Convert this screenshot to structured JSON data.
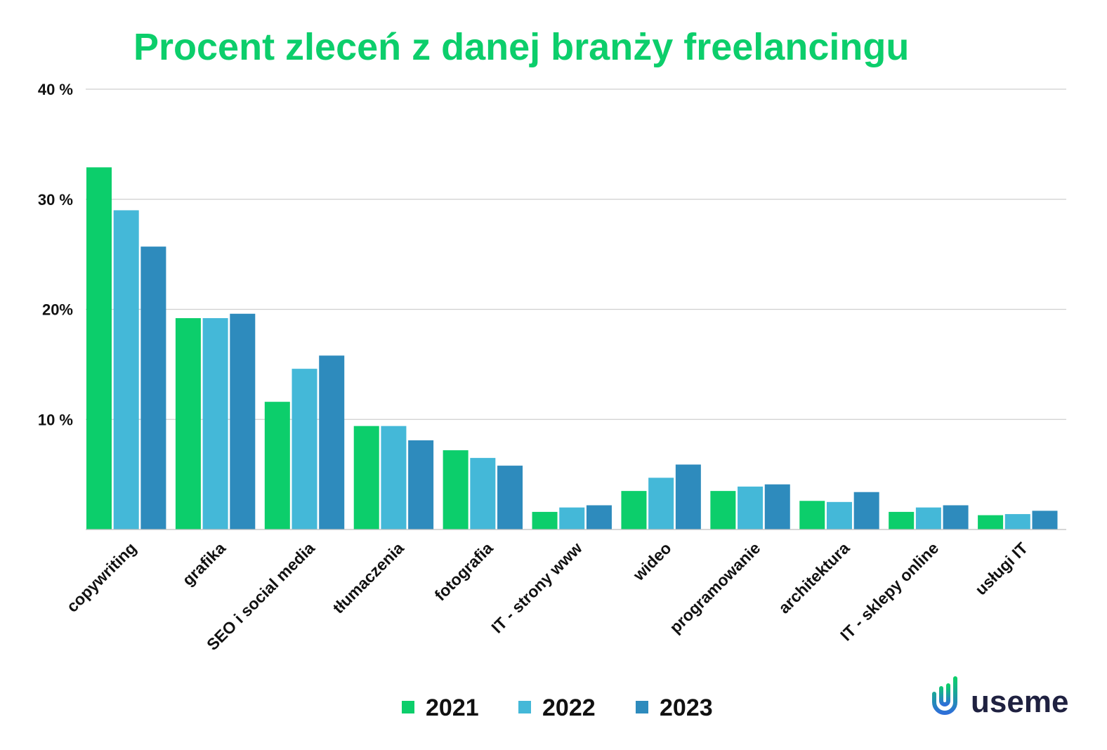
{
  "chart_data": {
    "type": "bar",
    "title": "Procent zleceń z danej branży freelancingu",
    "xlabel": "",
    "ylabel": "",
    "ylim": [
      0,
      40
    ],
    "yticks": [
      {
        "value": 10,
        "label": "10 %"
      },
      {
        "value": 20,
        "label": "20%"
      },
      {
        "value": 30,
        "label": "30 %"
      },
      {
        "value": 40,
        "label": "40 %"
      }
    ],
    "grid": true,
    "legend_position": "bottom",
    "categories": [
      "copywriting",
      "grafika",
      "SEO i social media",
      "tłumaczenia",
      "fotografia",
      "IT - strony www",
      "wideo",
      "programowanie",
      "architektura",
      "IT - sklepy online",
      "usługi IT"
    ],
    "series": [
      {
        "name": "2021",
        "color": "#0cce6b",
        "values": [
          32.9,
          19.2,
          11.6,
          9.4,
          7.2,
          1.6,
          3.5,
          3.5,
          2.6,
          1.6,
          1.3
        ]
      },
      {
        "name": "2022",
        "color": "#44b8d8",
        "values": [
          29.0,
          19.2,
          14.6,
          9.4,
          6.5,
          2.0,
          4.7,
          3.9,
          2.5,
          2.0,
          1.4
        ]
      },
      {
        "name": "2023",
        "color": "#2e8bbd",
        "values": [
          25.7,
          19.6,
          15.8,
          8.1,
          5.8,
          2.2,
          5.9,
          4.1,
          3.4,
          2.2,
          1.7
        ]
      }
    ]
  },
  "brand": {
    "name": "useme",
    "logo_icon": "useme-logo-icon",
    "logo_colors": [
      "#0cce6b",
      "#2e6fd8"
    ]
  }
}
